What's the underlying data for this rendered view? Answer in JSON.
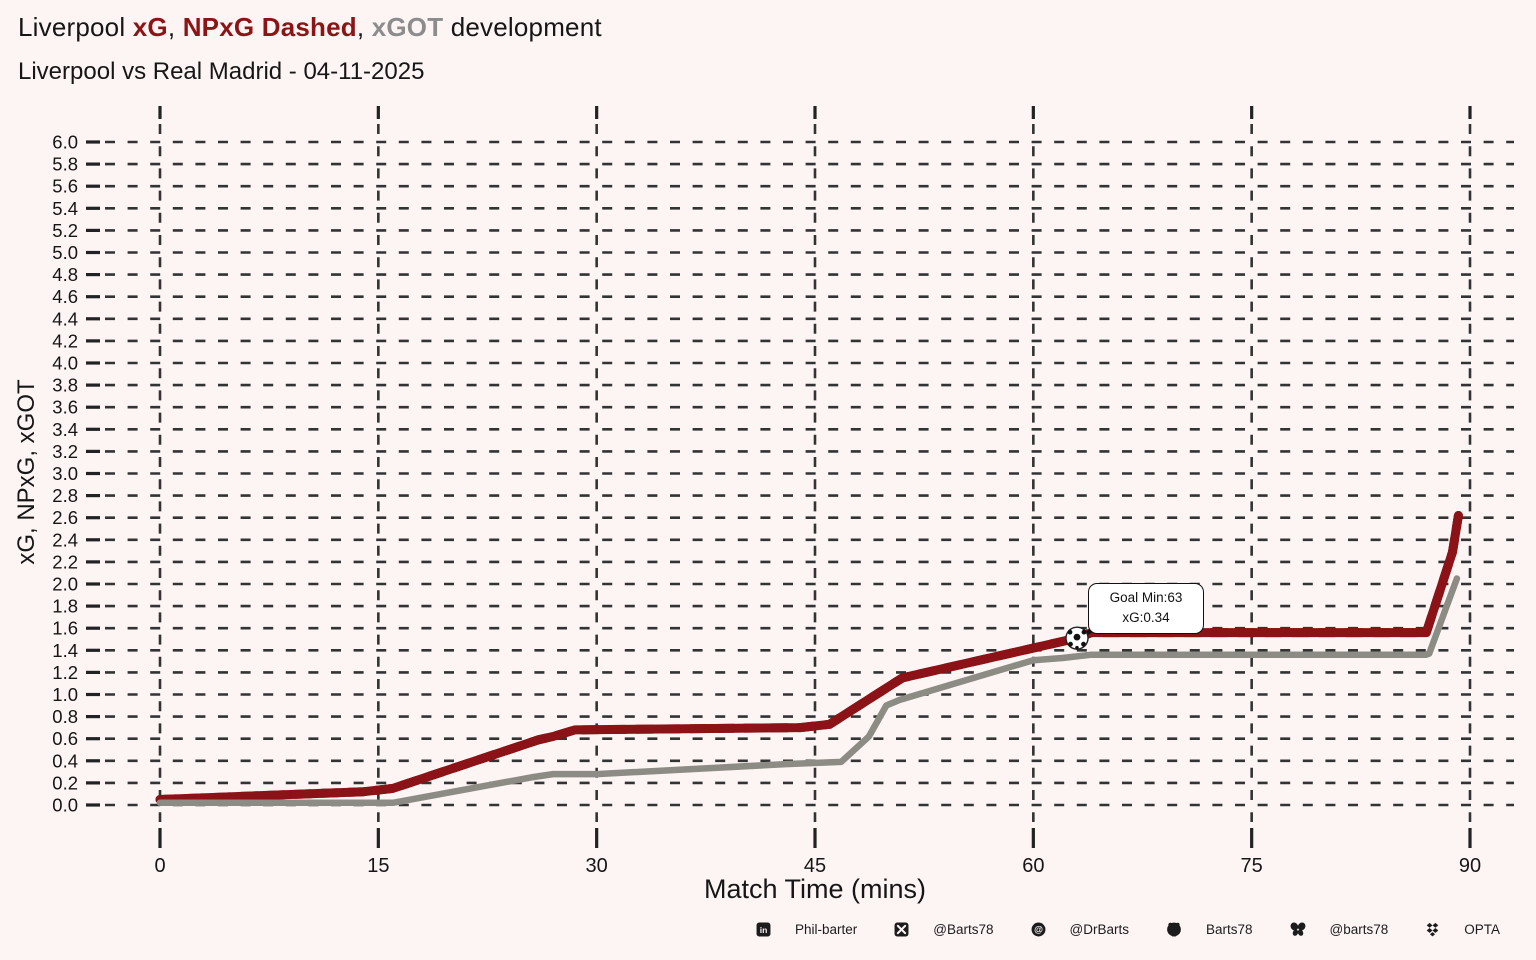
{
  "header": {
    "title_prefix": "Liverpool ",
    "title_xg": "xG",
    "title_sep1": ", ",
    "title_npxg": "NPxG Dashed",
    "title_sep2": ", ",
    "title_xgot": "xGOT",
    "title_suffix": " development",
    "subtitle": "Liverpool vs Real Madrid - 04-11-2025"
  },
  "colors": {
    "background": "#fdf4f4",
    "xg_line": "#8b1216",
    "xgot_line": "#8d8c84",
    "grid": "#333333",
    "tick": "#222222",
    "text": "#161616",
    "title_red": "#8b1516",
    "title_gray": "#8c8c8c",
    "tooltip_border": "#111111"
  },
  "chart_data": {
    "type": "line",
    "title": "Liverpool xG, NPxG Dashed, xGOT development",
    "subtitle": "Liverpool vs Real Madrid - 04-11-2025",
    "xlabel": "Match Time (mins)",
    "ylabel": "xG, NPxG, xGOT",
    "xlim": [
      0,
      90
    ],
    "ylim": [
      0,
      6.0
    ],
    "grid": "dashed",
    "legend_position": "none",
    "xticks": [
      "0",
      "15",
      "30",
      "45",
      "60",
      "75",
      "90"
    ],
    "yticks": [
      "0.0",
      "0.2",
      "0.4",
      "0.6",
      "0.8",
      "1.0",
      "1.2",
      "1.4",
      "1.6",
      "1.8",
      "2.0",
      "2.2",
      "2.4",
      "2.6",
      "2.8",
      "3.0",
      "3.2",
      "3.4",
      "3.6",
      "3.8",
      "4.0",
      "4.2",
      "4.4",
      "4.6",
      "4.8",
      "5.0",
      "5.2",
      "5.4",
      "5.6",
      "5.8",
      "6.0"
    ],
    "series": [
      {
        "name": "xG",
        "style": "solid",
        "color": "#8b1216",
        "points": [
          [
            0,
            0.05
          ],
          [
            14,
            0.12
          ],
          [
            16,
            0.15
          ],
          [
            26,
            0.59
          ],
          [
            27,
            0.62
          ],
          [
            28.5,
            0.68
          ],
          [
            44,
            0.7
          ],
          [
            46,
            0.73
          ],
          [
            51,
            1.15
          ],
          [
            63,
            1.51
          ],
          [
            64,
            1.56
          ],
          [
            87,
            1.56
          ],
          [
            88.8,
            2.29
          ],
          [
            89.2,
            2.62
          ]
        ]
      },
      {
        "name": "NPxG",
        "style": "dashed",
        "color": "#8b1216",
        "note": "identical to xG (no penalties) - dashed line overlaps solid xG line",
        "points": [
          [
            0,
            0.05
          ],
          [
            14,
            0.12
          ],
          [
            16,
            0.15
          ],
          [
            26,
            0.59
          ],
          [
            27,
            0.62
          ],
          [
            28.5,
            0.68
          ],
          [
            44,
            0.7
          ],
          [
            46,
            0.73
          ],
          [
            51,
            1.15
          ],
          [
            63,
            1.51
          ],
          [
            64,
            1.56
          ],
          [
            87,
            1.56
          ],
          [
            88.8,
            2.29
          ],
          [
            89.2,
            2.62
          ]
        ]
      },
      {
        "name": "xGOT",
        "style": "solid",
        "color": "#8d8c84",
        "points": [
          [
            0,
            0.02
          ],
          [
            16,
            0.02
          ],
          [
            25.5,
            0.25
          ],
          [
            27,
            0.28
          ],
          [
            30,
            0.28
          ],
          [
            43,
            0.37
          ],
          [
            46.8,
            0.39
          ],
          [
            48.7,
            0.62
          ],
          [
            49.9,
            0.9
          ],
          [
            50.8,
            0.95
          ],
          [
            60,
            1.31
          ],
          [
            62,
            1.33
          ],
          [
            64,
            1.36
          ],
          [
            87,
            1.36
          ],
          [
            87.2,
            1.37
          ],
          [
            89.1,
            2.05
          ]
        ]
      }
    ],
    "goal_marker": {
      "minute": 63,
      "value": 1.51,
      "icon": "soccer-ball-icon"
    },
    "annotation": {
      "line1": "Goal Min:63",
      "line2": "xG:0.34"
    }
  },
  "footer": {
    "items": [
      {
        "icon": "linkedin-icon",
        "label": "Phil-barter"
      },
      {
        "icon": "x-icon",
        "label": "@Barts78"
      },
      {
        "icon": "mastodon-icon",
        "label": "@DrBarts"
      },
      {
        "icon": "github-icon",
        "label": "Barts78"
      },
      {
        "icon": "bluesky-icon",
        "label": "@barts78"
      },
      {
        "icon": "opta-icon",
        "label": "OPTA"
      }
    ]
  }
}
